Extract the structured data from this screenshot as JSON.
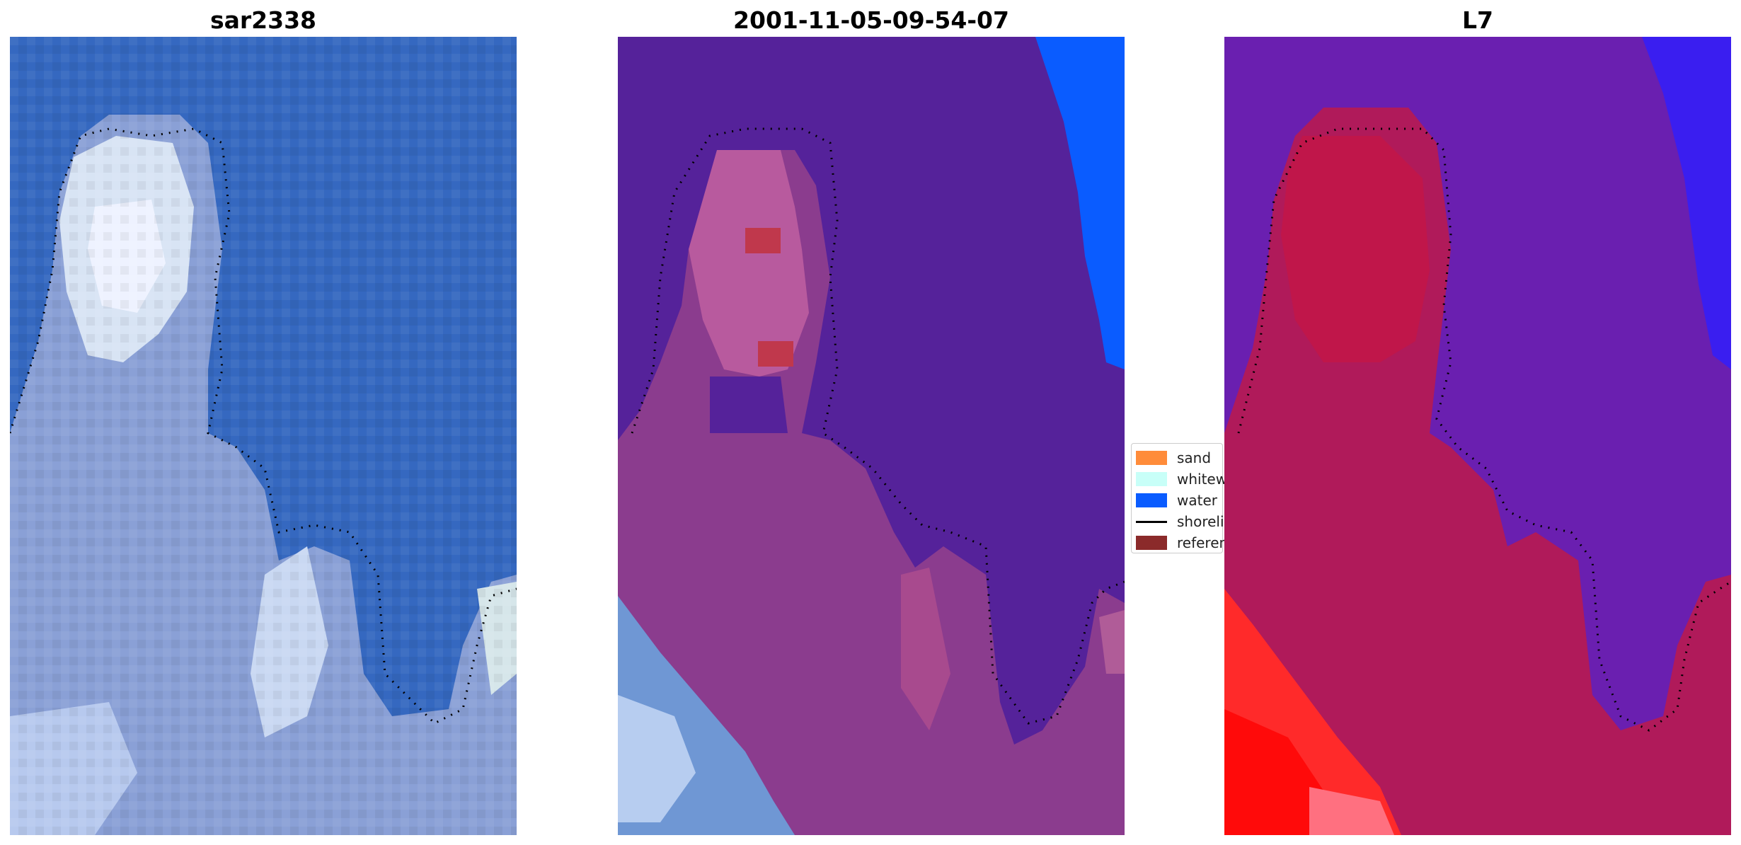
{
  "panels": [
    {
      "title": "sar2338"
    },
    {
      "title": "2001-11-05-09-54-07"
    },
    {
      "title": "L7"
    }
  ],
  "legend": {
    "items": [
      {
        "label": "sand",
        "color": "#ff8c3a"
      },
      {
        "label": "whitewater",
        "color": "#c8fff8"
      },
      {
        "label": "water",
        "color": "#0a5cff"
      },
      {
        "label": "shoreline",
        "color": "#000000"
      },
      {
        "label": "reference",
        "color": "#8b2a2a"
      }
    ]
  },
  "colors": {
    "sea_blue": "#3a6fc4",
    "land_rgb": "#8ea3d6",
    "class_water_dark": "#55229a",
    "class_land": "#8a3f8a",
    "index_water": "#6a1fb0",
    "index_land": "#c01848",
    "index_bright": "#ff1a1a"
  }
}
